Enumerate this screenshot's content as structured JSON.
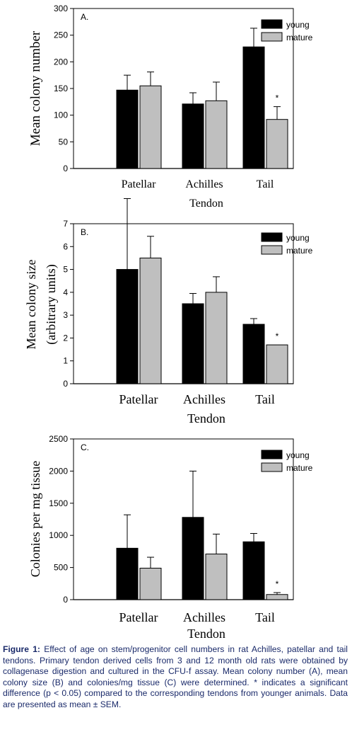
{
  "chart_data": [
    {
      "type": "bar",
      "panel_label": "A.",
      "ylabel": "Mean colony number",
      "xlabel": "Tendon",
      "categories": [
        "Patellar",
        "Achilles",
        "Tail"
      ],
      "ylim": [
        0,
        300
      ],
      "yticks": [
        0,
        50,
        100,
        150,
        200,
        250,
        300
      ],
      "series": [
        {
          "name": "young",
          "values": [
            147,
            121,
            228
          ],
          "errors": [
            28,
            21,
            35
          ],
          "color": "#000000"
        },
        {
          "name": "mature",
          "values": [
            155,
            127,
            92
          ],
          "errors": [
            26,
            35,
            24
          ],
          "color": "#bfbfbf"
        }
      ],
      "annotations": [
        {
          "text": "*",
          "category": "Tail",
          "series": "mature"
        }
      ],
      "legend": "top-right"
    },
    {
      "type": "bar",
      "panel_label": "B.",
      "ylabel": "Mean colony size",
      "ylabel2": "(arbitrary units)",
      "xlabel": "Tendon",
      "categories": [
        "Patellar",
        "Achilles",
        "Tail"
      ],
      "ylim": [
        0,
        7
      ],
      "yticks": [
        0,
        1,
        2,
        3,
        4,
        5,
        6,
        7
      ],
      "series": [
        {
          "name": "young",
          "values": [
            5.0,
            3.5,
            2.6
          ],
          "errors": [
            3.1,
            0.45,
            0.25
          ],
          "color": "#000000"
        },
        {
          "name": "mature",
          "values": [
            5.5,
            4.0,
            1.7
          ],
          "errors": [
            0.95,
            0.68,
            0
          ],
          "color": "#bfbfbf"
        }
      ],
      "annotations": [
        {
          "text": "*",
          "category": "Tail",
          "series": "mature"
        }
      ],
      "legend": "top-right"
    },
    {
      "type": "bar",
      "panel_label": "C.",
      "ylabel": "Colonies per mg tissue",
      "xlabel": "Tendon",
      "categories": [
        "Patellar",
        "Achilles",
        "Tail"
      ],
      "ylim": [
        0,
        2500
      ],
      "yticks": [
        0,
        500,
        1000,
        1500,
        2000,
        2500
      ],
      "series": [
        {
          "name": "young",
          "values": [
            800,
            1280,
            900
          ],
          "errors": [
            520,
            720,
            130
          ],
          "color": "#000000"
        },
        {
          "name": "mature",
          "values": [
            490,
            710,
            80
          ],
          "errors": [
            170,
            310,
            30
          ],
          "color": "#bfbfbf"
        }
      ],
      "annotations": [
        {
          "text": "*",
          "category": "Tail",
          "series": "mature"
        }
      ],
      "legend": "top-right"
    }
  ],
  "caption": {
    "label": "Figure 1:",
    "text": "Effect of age on stem/progenitor cell numbers in rat Achilles, patellar and tail tendons. Primary tendon derived cells from 3 and 12 month old rats were obtained by collagenase digestion and cultured in the CFU-f assay. Mean colony number (A), mean colony size (B) and colonies/mg tissue (C) were determined. * indicates a significant difference (p < 0.05) compared to the corresponding tendons from younger animals. Data are presented as mean ± SEM."
  }
}
